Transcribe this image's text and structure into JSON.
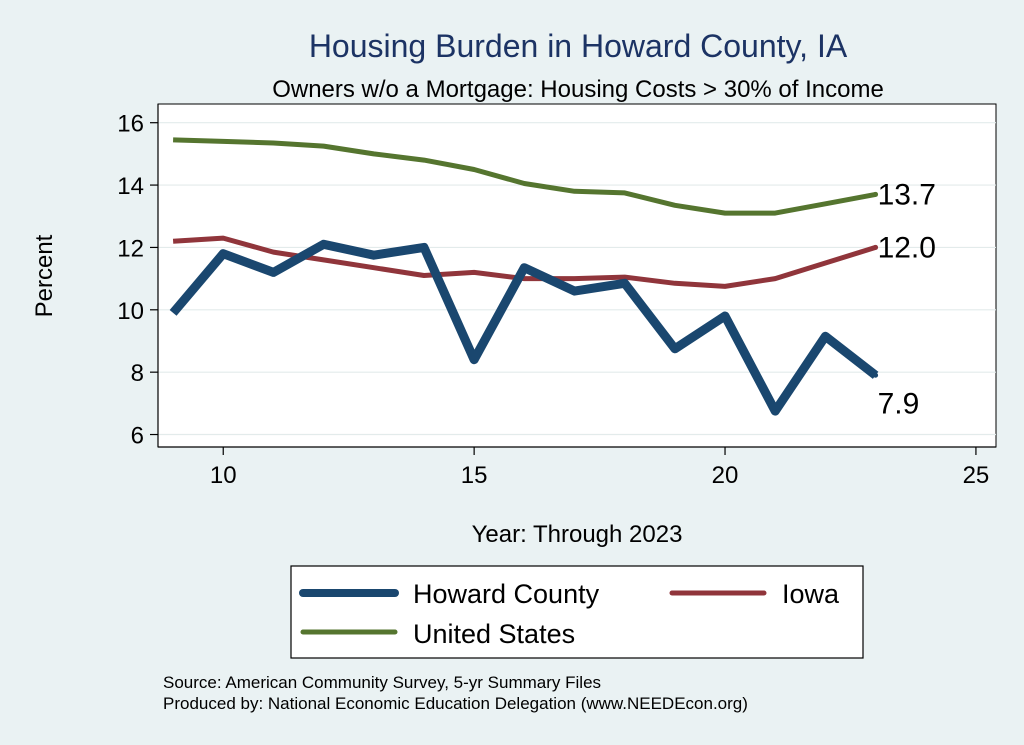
{
  "chart_data": {
    "type": "line",
    "title": "Housing Burden in Howard County, IA",
    "subtitle": "Owners w/o a Mortgage: Housing Costs > 30% of Income",
    "xlabel": "Year: Through 2023",
    "ylabel": "Percent",
    "xlim": [
      8.7,
      25.4
    ],
    "ylim": [
      5.6,
      16.6
    ],
    "xticks": [
      10,
      15,
      20,
      25
    ],
    "yticks": [
      6,
      8,
      10,
      12,
      14,
      16
    ],
    "grid": true,
    "legend_position": "bottom",
    "x": [
      9,
      10,
      11,
      12,
      13,
      14,
      15,
      16,
      17,
      18,
      19,
      20,
      21,
      22,
      23
    ],
    "series": [
      {
        "name": "Howard County",
        "color": "#1a476f",
        "values": [
          9.9,
          11.8,
          11.2,
          12.1,
          11.75,
          12.0,
          8.4,
          11.35,
          10.6,
          10.85,
          8.75,
          9.8,
          6.75,
          9.15,
          7.9
        ],
        "end_label": "7.9"
      },
      {
        "name": "Iowa",
        "color": "#90353b",
        "values": [
          12.2,
          12.3,
          11.85,
          11.6,
          11.35,
          11.1,
          11.2,
          11.0,
          11.0,
          11.05,
          10.85,
          10.75,
          11.0,
          11.5,
          12.0
        ],
        "end_label": "12.0"
      },
      {
        "name": "United States",
        "color": "#55752f",
        "values": [
          15.45,
          15.4,
          15.35,
          15.25,
          15.0,
          14.8,
          14.5,
          14.05,
          13.8,
          13.75,
          13.35,
          13.1,
          13.1,
          13.4,
          13.7
        ],
        "end_label": "13.7"
      }
    ]
  },
  "footer": {
    "source": "Source: American Community Survey, 5-yr Summary Files",
    "producer": "Produced by: National Economic Education Delegation (www.NEEDEcon.org)"
  }
}
